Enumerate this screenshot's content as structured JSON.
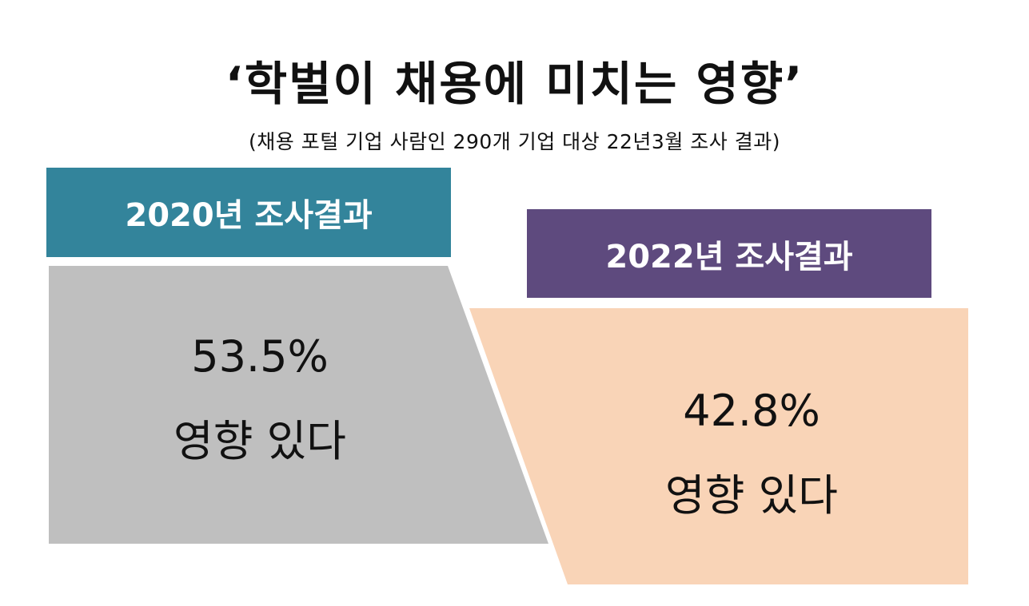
{
  "title": "‘학벌이 채용에 미치는 영향’",
  "subtitle": "(채용 포털 기업 사람인 290개 기업 대상 22년3월 조사 결과)",
  "colors": {
    "header_2020": "#33849b",
    "header_2022": "#5e4a7e",
    "panel_2020": "#bfbfbf",
    "panel_2022": "#f9d4b7"
  },
  "results": [
    {
      "header": "2020년 조사결과",
      "value": "53.5%",
      "label": "영향 있다"
    },
    {
      "header": "2022년 조사결과",
      "value": "42.8%",
      "label": "영향 있다"
    }
  ]
}
